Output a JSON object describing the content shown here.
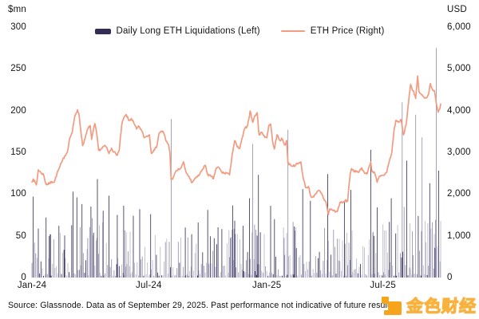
{
  "header": {
    "left_axis_unit": "$mn",
    "right_axis_unit": "USD"
  },
  "legend": [
    {
      "type": "bar",
      "label": "Daily Long ETH Liquidations (Left)",
      "color": "#312d55"
    },
    {
      "type": "line",
      "label": "ETH Price (Right)",
      "color": "#f29b80"
    }
  ],
  "footer": {
    "source_text": "Source: Glassnode. Data as of September 29, 2025. Past performance not indicative of future results."
  },
  "watermark": {
    "brand_text": "金色财经",
    "icon_color": "#f6a41c"
  },
  "chart_data": {
    "type": "combo",
    "grid": false,
    "legend_position": "top",
    "x_axis": {
      "domain": [
        "2024-01-01",
        "2025-09-29"
      ],
      "tick_dates": [
        "2024-01-01",
        "2024-07-01",
        "2025-01-01",
        "2025-07-01"
      ],
      "tick_labels": [
        "Jan-24",
        "Jul-24",
        "Jan-25",
        "Jul-25"
      ]
    },
    "y_left": {
      "unit": "$mn",
      "range": [
        0,
        300
      ],
      "ticks": [
        0,
        50,
        100,
        150,
        200,
        250,
        300
      ],
      "tick_labels": [
        "0",
        "50",
        "100",
        "150",
        "200",
        "250",
        "300"
      ]
    },
    "y_right": {
      "unit": "USD",
      "range": [
        0,
        6000
      ],
      "ticks": [
        0,
        1000,
        2000,
        3000,
        4000,
        5000,
        6000
      ],
      "tick_labels": [
        "0",
        "1,000",
        "2,000",
        "3,000",
        "4,000",
        "5,000",
        "6,000"
      ]
    },
    "series": [
      {
        "name": "Daily Long ETH Liquidations",
        "type": "bar",
        "axis": "left",
        "unit": "$mn",
        "colors": {
          "dark": "#39355f",
          "mid": "#8d8ba6",
          "light": "#b6b4c6"
        },
        "daily_synthesis": {
          "start_date": "2024-01-01",
          "end_date": "2025-09-29",
          "seed": 42,
          "monthly_envelope_mn": [
            58,
            52,
            78,
            72,
            62,
            55,
            50,
            60,
            42,
            48,
            58,
            72,
            62,
            66,
            52,
            60,
            56,
            56,
            72,
            88,
            80
          ]
        },
        "spikes": [
          [
            "2024-01-03",
            97
          ],
          [
            "2024-01-23",
            72
          ],
          [
            "2024-02-12",
            62
          ],
          [
            "2024-03-05",
            103
          ],
          [
            "2024-03-11",
            96
          ],
          [
            "2024-03-19",
            88
          ],
          [
            "2024-04-02",
            85
          ],
          [
            "2024-04-12",
            118
          ],
          [
            "2024-04-21",
            80
          ],
          [
            "2024-04-30",
            98
          ],
          [
            "2024-05-13",
            75
          ],
          [
            "2024-05-23",
            86
          ],
          [
            "2024-06-07",
            74
          ],
          [
            "2024-06-17",
            82
          ],
          [
            "2024-07-04",
            76
          ],
          [
            "2024-08-05",
            190
          ],
          [
            "2024-08-27",
            60
          ],
          [
            "2024-09-06",
            52
          ],
          [
            "2024-10-01",
            81
          ],
          [
            "2024-10-23",
            58
          ],
          [
            "2024-11-12",
            68
          ],
          [
            "2024-11-25",
            62
          ],
          [
            "2024-12-05",
            95
          ],
          [
            "2024-12-10",
            160
          ],
          [
            "2024-12-19",
            123
          ],
          [
            "2025-01-07",
            86
          ],
          [
            "2025-01-13",
            70
          ],
          [
            "2025-02-03",
            177
          ],
          [
            "2025-02-26",
            106
          ],
          [
            "2025-03-10",
            92
          ],
          [
            "2025-04-06",
            124
          ],
          [
            "2025-05-02",
            91
          ],
          [
            "2025-05-12",
            105
          ],
          [
            "2025-06-12",
            153
          ],
          [
            "2025-06-22",
            84
          ],
          [
            "2025-07-14",
            95
          ],
          [
            "2025-07-31",
            210
          ],
          [
            "2025-08-07",
            140
          ],
          [
            "2025-08-21",
            195
          ],
          [
            "2025-08-31",
            168
          ],
          [
            "2025-09-12",
            113
          ],
          [
            "2025-09-22",
            275
          ],
          [
            "2025-09-26",
            128
          ]
        ]
      },
      {
        "name": "ETH Price",
        "type": "line",
        "axis": "right",
        "unit": "USD",
        "color": "#f29b80",
        "points": [
          [
            "2024-01-01",
            2290
          ],
          [
            "2024-01-03",
            2360
          ],
          [
            "2024-01-08",
            2220
          ],
          [
            "2024-01-11",
            2580
          ],
          [
            "2024-01-15",
            2510
          ],
          [
            "2024-01-19",
            2470
          ],
          [
            "2024-01-23",
            2230
          ],
          [
            "2024-01-28",
            2250
          ],
          [
            "2024-02-01",
            2300
          ],
          [
            "2024-02-05",
            2290
          ],
          [
            "2024-02-09",
            2490
          ],
          [
            "2024-02-13",
            2640
          ],
          [
            "2024-02-17",
            2780
          ],
          [
            "2024-02-21",
            2910
          ],
          [
            "2024-02-25",
            3000
          ],
          [
            "2024-02-29",
            3340
          ],
          [
            "2024-03-04",
            3490
          ],
          [
            "2024-03-08",
            3880
          ],
          [
            "2024-03-12",
            4020
          ],
          [
            "2024-03-14",
            3930
          ],
          [
            "2024-03-17",
            3540
          ],
          [
            "2024-03-20",
            3160
          ],
          [
            "2024-03-24",
            3340
          ],
          [
            "2024-03-28",
            3560
          ],
          [
            "2024-04-01",
            3640
          ],
          [
            "2024-04-03",
            3310
          ],
          [
            "2024-04-08",
            3690
          ],
          [
            "2024-04-10",
            3540
          ],
          [
            "2024-04-14",
            3050
          ],
          [
            "2024-04-18",
            3080
          ],
          [
            "2024-04-22",
            3150
          ],
          [
            "2024-04-26",
            3130
          ],
          [
            "2024-04-30",
            2970
          ],
          [
            "2024-05-04",
            3100
          ],
          [
            "2024-05-08",
            3010
          ],
          [
            "2024-05-12",
            2930
          ],
          [
            "2024-05-16",
            3040
          ],
          [
            "2024-05-20",
            3660
          ],
          [
            "2024-05-23",
            3820
          ],
          [
            "2024-05-27",
            3900
          ],
          [
            "2024-05-31",
            3760
          ],
          [
            "2024-06-04",
            3810
          ],
          [
            "2024-06-08",
            3690
          ],
          [
            "2024-06-12",
            3560
          ],
          [
            "2024-06-16",
            3620
          ],
          [
            "2024-06-20",
            3520
          ],
          [
            "2024-06-24",
            3350
          ],
          [
            "2024-06-28",
            3390
          ],
          [
            "2024-07-02",
            3420
          ],
          [
            "2024-07-05",
            2980
          ],
          [
            "2024-07-09",
            3060
          ],
          [
            "2024-07-13",
            3110
          ],
          [
            "2024-07-17",
            3450
          ],
          [
            "2024-07-21",
            3510
          ],
          [
            "2024-07-24",
            3480
          ],
          [
            "2024-07-28",
            3270
          ],
          [
            "2024-08-01",
            3180
          ],
          [
            "2024-08-03",
            2990
          ],
          [
            "2024-08-05",
            2340
          ],
          [
            "2024-08-09",
            2420
          ],
          [
            "2024-08-13",
            2560
          ],
          [
            "2024-08-17",
            2590
          ],
          [
            "2024-08-21",
            2640
          ],
          [
            "2024-08-24",
            2770
          ],
          [
            "2024-08-28",
            2530
          ],
          [
            "2024-09-01",
            2430
          ],
          [
            "2024-09-06",
            2270
          ],
          [
            "2024-09-10",
            2340
          ],
          [
            "2024-09-14",
            2420
          ],
          [
            "2024-09-18",
            2460
          ],
          [
            "2024-09-22",
            2580
          ],
          [
            "2024-09-27",
            2690
          ],
          [
            "2024-10-01",
            2470
          ],
          [
            "2024-10-06",
            2420
          ],
          [
            "2024-10-10",
            2370
          ],
          [
            "2024-10-14",
            2620
          ],
          [
            "2024-10-18",
            2640
          ],
          [
            "2024-10-23",
            2520
          ],
          [
            "2024-10-27",
            2500
          ],
          [
            "2024-10-31",
            2510
          ],
          [
            "2024-11-04",
            2460
          ],
          [
            "2024-11-08",
            2950
          ],
          [
            "2024-11-12",
            3280
          ],
          [
            "2024-11-16",
            3130
          ],
          [
            "2024-11-20",
            3090
          ],
          [
            "2024-11-24",
            3360
          ],
          [
            "2024-11-28",
            3580
          ],
          [
            "2024-12-02",
            3640
          ],
          [
            "2024-12-06",
            3990
          ],
          [
            "2024-12-10",
            3720
          ],
          [
            "2024-12-14",
            3890
          ],
          [
            "2024-12-17",
            3950
          ],
          [
            "2024-12-20",
            3420
          ],
          [
            "2024-12-24",
            3480
          ],
          [
            "2024-12-28",
            3390
          ],
          [
            "2025-01-01",
            3350
          ],
          [
            "2025-01-04",
            3630
          ],
          [
            "2025-01-07",
            3680
          ],
          [
            "2025-01-10",
            3270
          ],
          [
            "2025-01-13",
            3080
          ],
          [
            "2025-01-17",
            3420
          ],
          [
            "2025-01-21",
            3290
          ],
          [
            "2025-01-25",
            3320
          ],
          [
            "2025-01-29",
            3170
          ],
          [
            "2025-02-01",
            3280
          ],
          [
            "2025-02-03",
            2740
          ],
          [
            "2025-02-07",
            2700
          ],
          [
            "2025-02-11",
            2670
          ],
          [
            "2025-02-15",
            2700
          ],
          [
            "2025-02-19",
            2730
          ],
          [
            "2025-02-23",
            2770
          ],
          [
            "2025-02-27",
            2360
          ],
          [
            "2025-03-03",
            2150
          ],
          [
            "2025-03-07",
            2180
          ],
          [
            "2025-03-11",
            1930
          ],
          [
            "2025-03-15",
            1930
          ],
          [
            "2025-03-19",
            2010
          ],
          [
            "2025-03-23",
            2090
          ],
          [
            "2025-03-27",
            2030
          ],
          [
            "2025-03-31",
            1880
          ],
          [
            "2025-04-03",
            1820
          ],
          [
            "2025-04-07",
            1510
          ],
          [
            "2025-04-09",
            1640
          ],
          [
            "2025-04-13",
            1620
          ],
          [
            "2025-04-17",
            1590
          ],
          [
            "2025-04-21",
            1580
          ],
          [
            "2025-04-25",
            1800
          ],
          [
            "2025-04-29",
            1790
          ],
          [
            "2025-05-03",
            1840
          ],
          [
            "2025-05-07",
            1830
          ],
          [
            "2025-05-09",
            2210
          ],
          [
            "2025-05-11",
            2480
          ],
          [
            "2025-05-13",
            2610
          ],
          [
            "2025-05-17",
            2530
          ],
          [
            "2025-05-21",
            2550
          ],
          [
            "2025-05-25",
            2540
          ],
          [
            "2025-05-29",
            2630
          ],
          [
            "2025-06-02",
            2510
          ],
          [
            "2025-06-06",
            2480
          ],
          [
            "2025-06-10",
            2680
          ],
          [
            "2025-06-12",
            2770
          ],
          [
            "2025-06-14",
            2540
          ],
          [
            "2025-06-18",
            2520
          ],
          [
            "2025-06-22",
            2280
          ],
          [
            "2025-06-25",
            2410
          ],
          [
            "2025-06-29",
            2440
          ],
          [
            "2025-07-03",
            2450
          ],
          [
            "2025-07-07",
            2520
          ],
          [
            "2025-07-11",
            2790
          ],
          [
            "2025-07-15",
            3010
          ],
          [
            "2025-07-18",
            3480
          ],
          [
            "2025-07-21",
            3760
          ],
          [
            "2025-07-25",
            3720
          ],
          [
            "2025-07-29",
            3790
          ],
          [
            "2025-08-02",
            3420
          ],
          [
            "2025-08-06",
            3650
          ],
          [
            "2025-08-09",
            4080
          ],
          [
            "2025-08-13",
            4630
          ],
          [
            "2025-08-15",
            4540
          ],
          [
            "2025-08-17",
            4480
          ],
          [
            "2025-08-21",
            4290
          ],
          [
            "2025-08-24",
            4830
          ],
          [
            "2025-08-26",
            4460
          ],
          [
            "2025-08-30",
            4380
          ],
          [
            "2025-09-03",
            4310
          ],
          [
            "2025-09-06",
            4300
          ],
          [
            "2025-09-10",
            4390
          ],
          [
            "2025-09-13",
            4650
          ],
          [
            "2025-09-16",
            4510
          ],
          [
            "2025-09-19",
            4480
          ],
          [
            "2025-09-22",
            4180
          ],
          [
            "2025-09-25",
            3960
          ],
          [
            "2025-09-27",
            4020
          ],
          [
            "2025-09-29",
            4160
          ]
        ]
      }
    ]
  }
}
